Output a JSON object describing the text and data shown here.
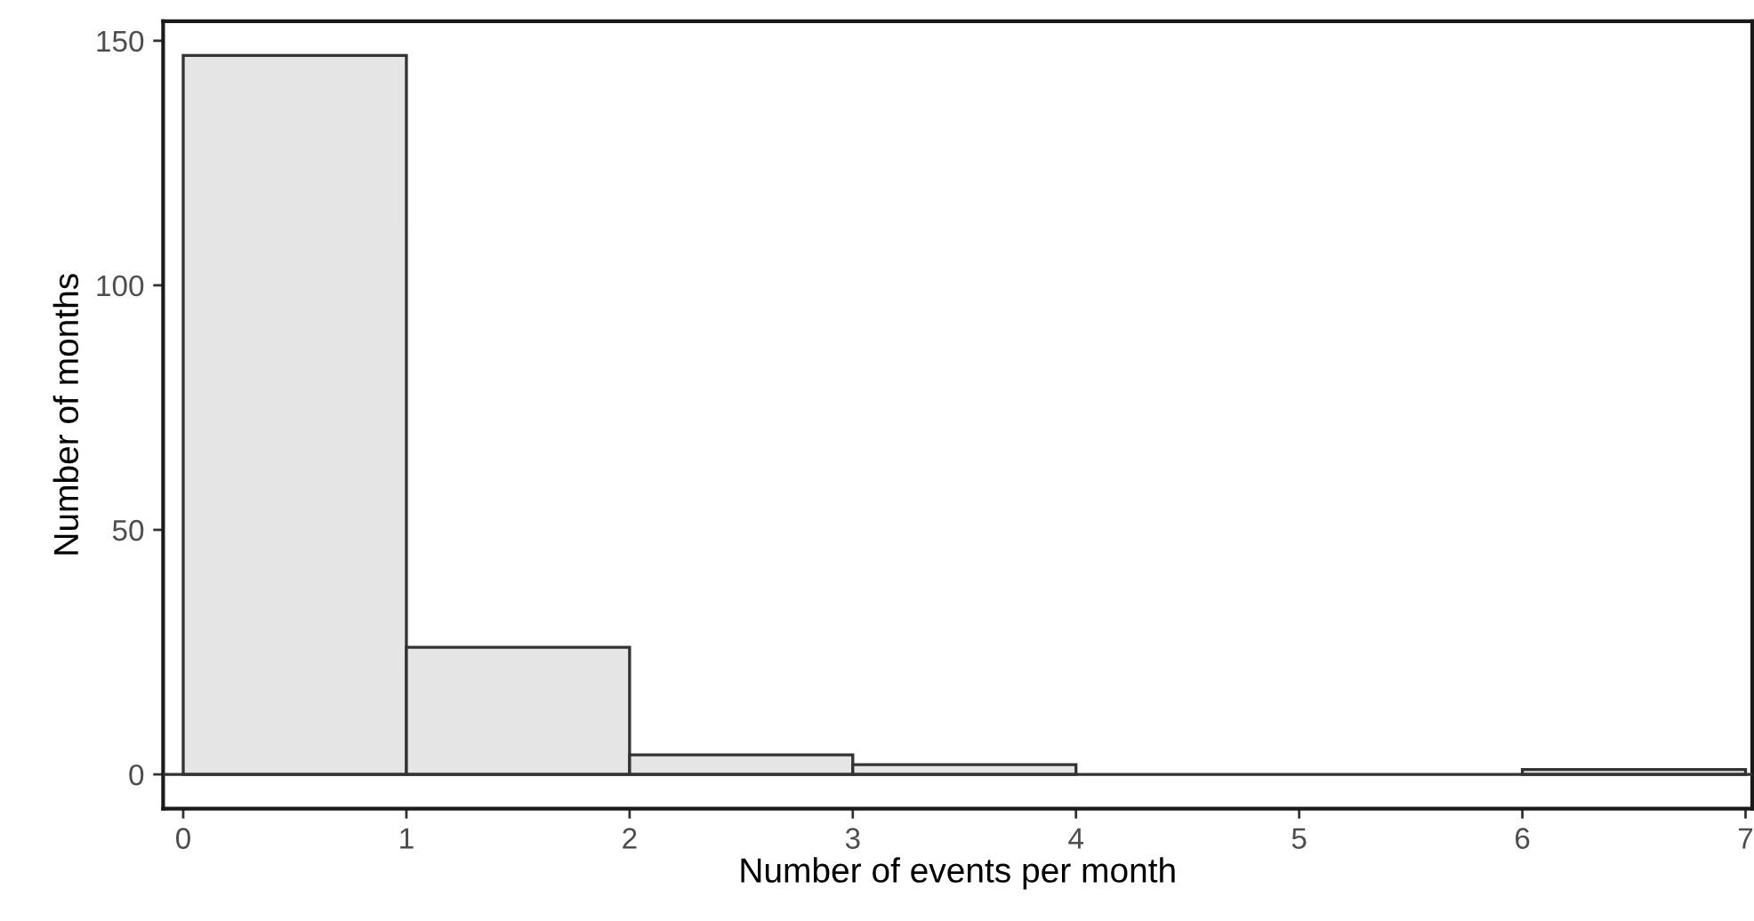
{
  "chart_data": {
    "type": "histogram",
    "xlabel": "Number of events per month",
    "ylabel": "Number of months",
    "bins": [
      0,
      1,
      2,
      3,
      4,
      5,
      6,
      7
    ],
    "values": [
      147,
      26,
      4,
      2,
      0,
      0,
      1
    ],
    "color": "#e5e5e5",
    "xlim": [
      -0.09,
      7.03
    ],
    "xticks": [
      0,
      1,
      2,
      3,
      4,
      5,
      6,
      7
    ],
    "ylim": [
      -7,
      154
    ],
    "yticks": [
      0,
      50,
      100,
      150
    ],
    "ref_lines": [
      {
        "axis": "y",
        "value": 0,
        "color": "#333333"
      }
    ],
    "grid": false,
    "legend": false
  }
}
